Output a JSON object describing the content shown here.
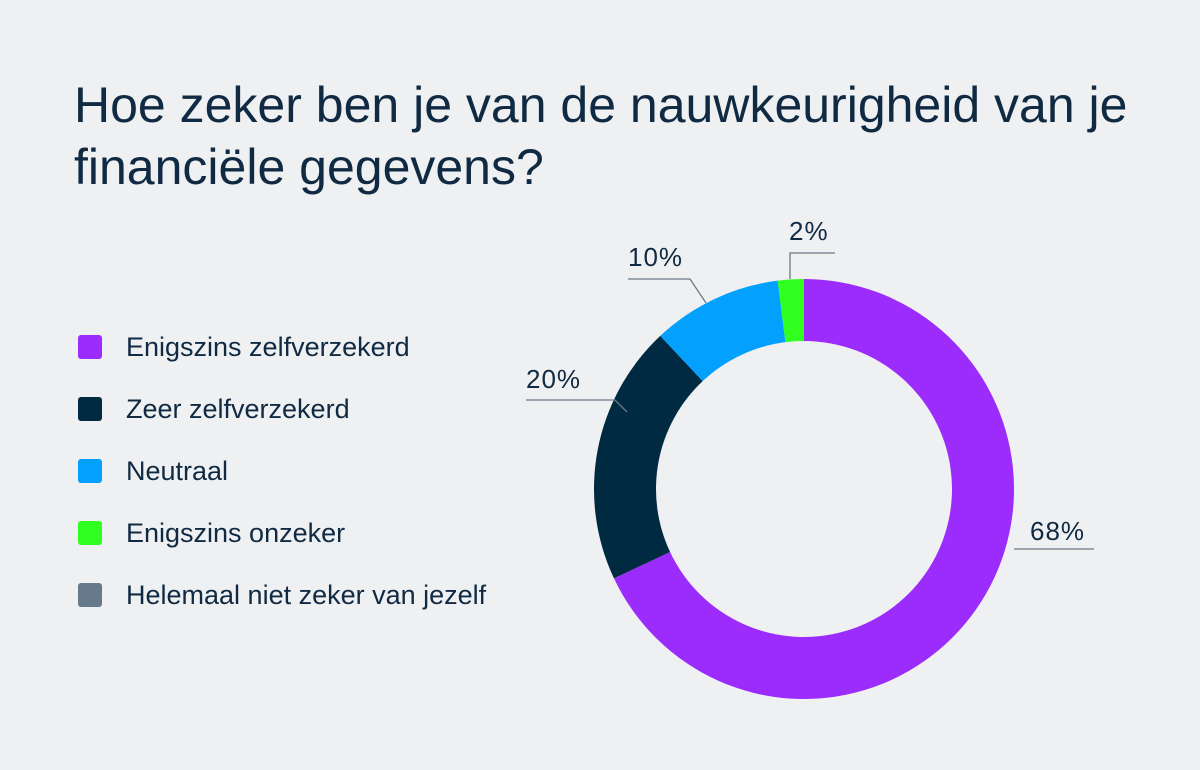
{
  "title": "Hoe zeker ben je van de nauwkeurigheid van je financiële gegevens?",
  "chart_data": {
    "type": "pie",
    "donut": true,
    "categories": [
      "Enigszins zelfverzekerd",
      "Zeer zelfverzekerd",
      "Neutraal",
      "Enigszins onzeker",
      "Helemaal niet zeker van jezelf"
    ],
    "values": [
      68,
      20,
      10,
      2,
      0
    ],
    "labels": [
      "68%",
      "20%",
      "10%",
      "2%",
      ""
    ],
    "colors": [
      "#9b2cfc",
      "#002a41",
      "#03a0fe",
      "#30ff1f",
      "#677a8b"
    ],
    "legend_position": "left"
  }
}
